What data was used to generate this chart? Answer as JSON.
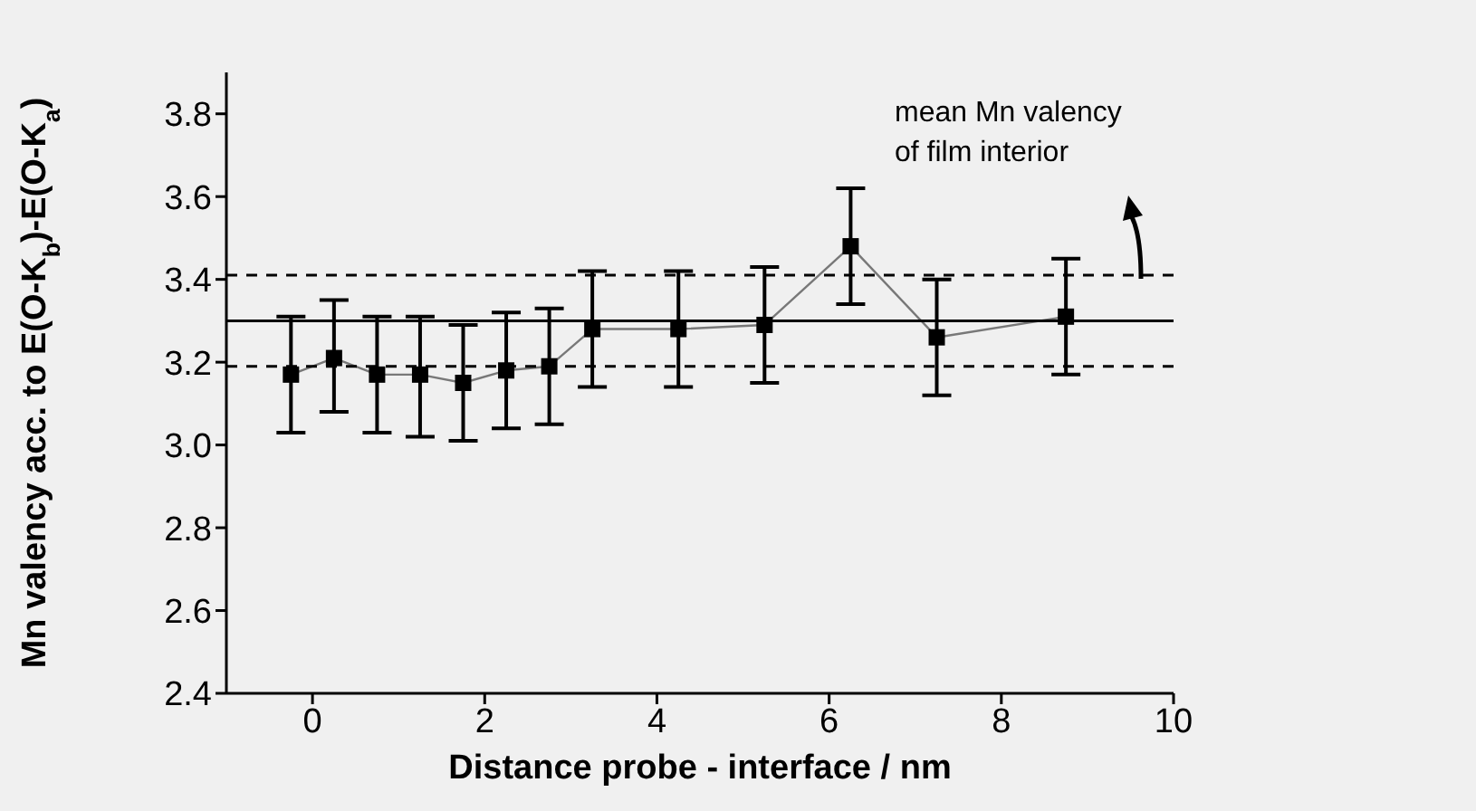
{
  "chart_data": {
    "type": "line",
    "xlabel": "Distance probe - interface / nm",
    "ylabel": "Mn valency acc. to E(O-K$_{b}$)-E(O-K$_{a}$)",
    "x": [
      -0.25,
      0.25,
      0.75,
      1.25,
      1.75,
      2.25,
      2.75,
      3.25,
      4.25,
      5.25,
      6.25,
      7.25,
      8.75
    ],
    "series": [
      {
        "color": "#000000",
        "values": [
          3.17,
          3.21,
          3.17,
          3.17,
          3.15,
          3.18,
          3.19,
          3.28,
          3.28,
          3.29,
          3.48,
          3.26,
          3.31
        ],
        "errors": [
          [
            3.03,
            3.31
          ],
          [
            3.08,
            3.35
          ],
          [
            3.03,
            3.31
          ],
          [
            3.02,
            3.31
          ],
          [
            3.01,
            3.29
          ],
          [
            3.04,
            3.32
          ],
          [
            3.05,
            3.33
          ],
          [
            3.14,
            3.42
          ],
          [
            3.14,
            3.42
          ],
          [
            3.15,
            3.43
          ],
          [
            3.34,
            3.62
          ],
          [
            3.12,
            3.4
          ],
          [
            3.17,
            3.45
          ]
        ]
      }
    ],
    "marker": "square",
    "xlim": [
      -1,
      10
    ],
    "xticks": [
      0,
      2,
      4,
      6,
      8,
      10
    ],
    "ylim": [
      2.4,
      3.9
    ],
    "yticks": [
      2.4,
      2.6,
      2.8,
      {
        "value": 3,
        "label": "3.0"
      },
      3.2,
      3.4,
      3.6,
      3.8
    ],
    "ref_lines": [
      {
        "axis": "y",
        "value": 3.3,
        "line_style": "solid",
        "color": "#000000"
      },
      {
        "axis": "y",
        "value": 3.41,
        "line_style": "dashed",
        "color": "#000000"
      },
      {
        "axis": "y",
        "value": 3.19,
        "line_style": "dashed",
        "color": "#000000"
      }
    ],
    "annotations": [
      "mean Mn valency\nof film interior"
    ],
    "grid": false,
    "legend": false
  }
}
